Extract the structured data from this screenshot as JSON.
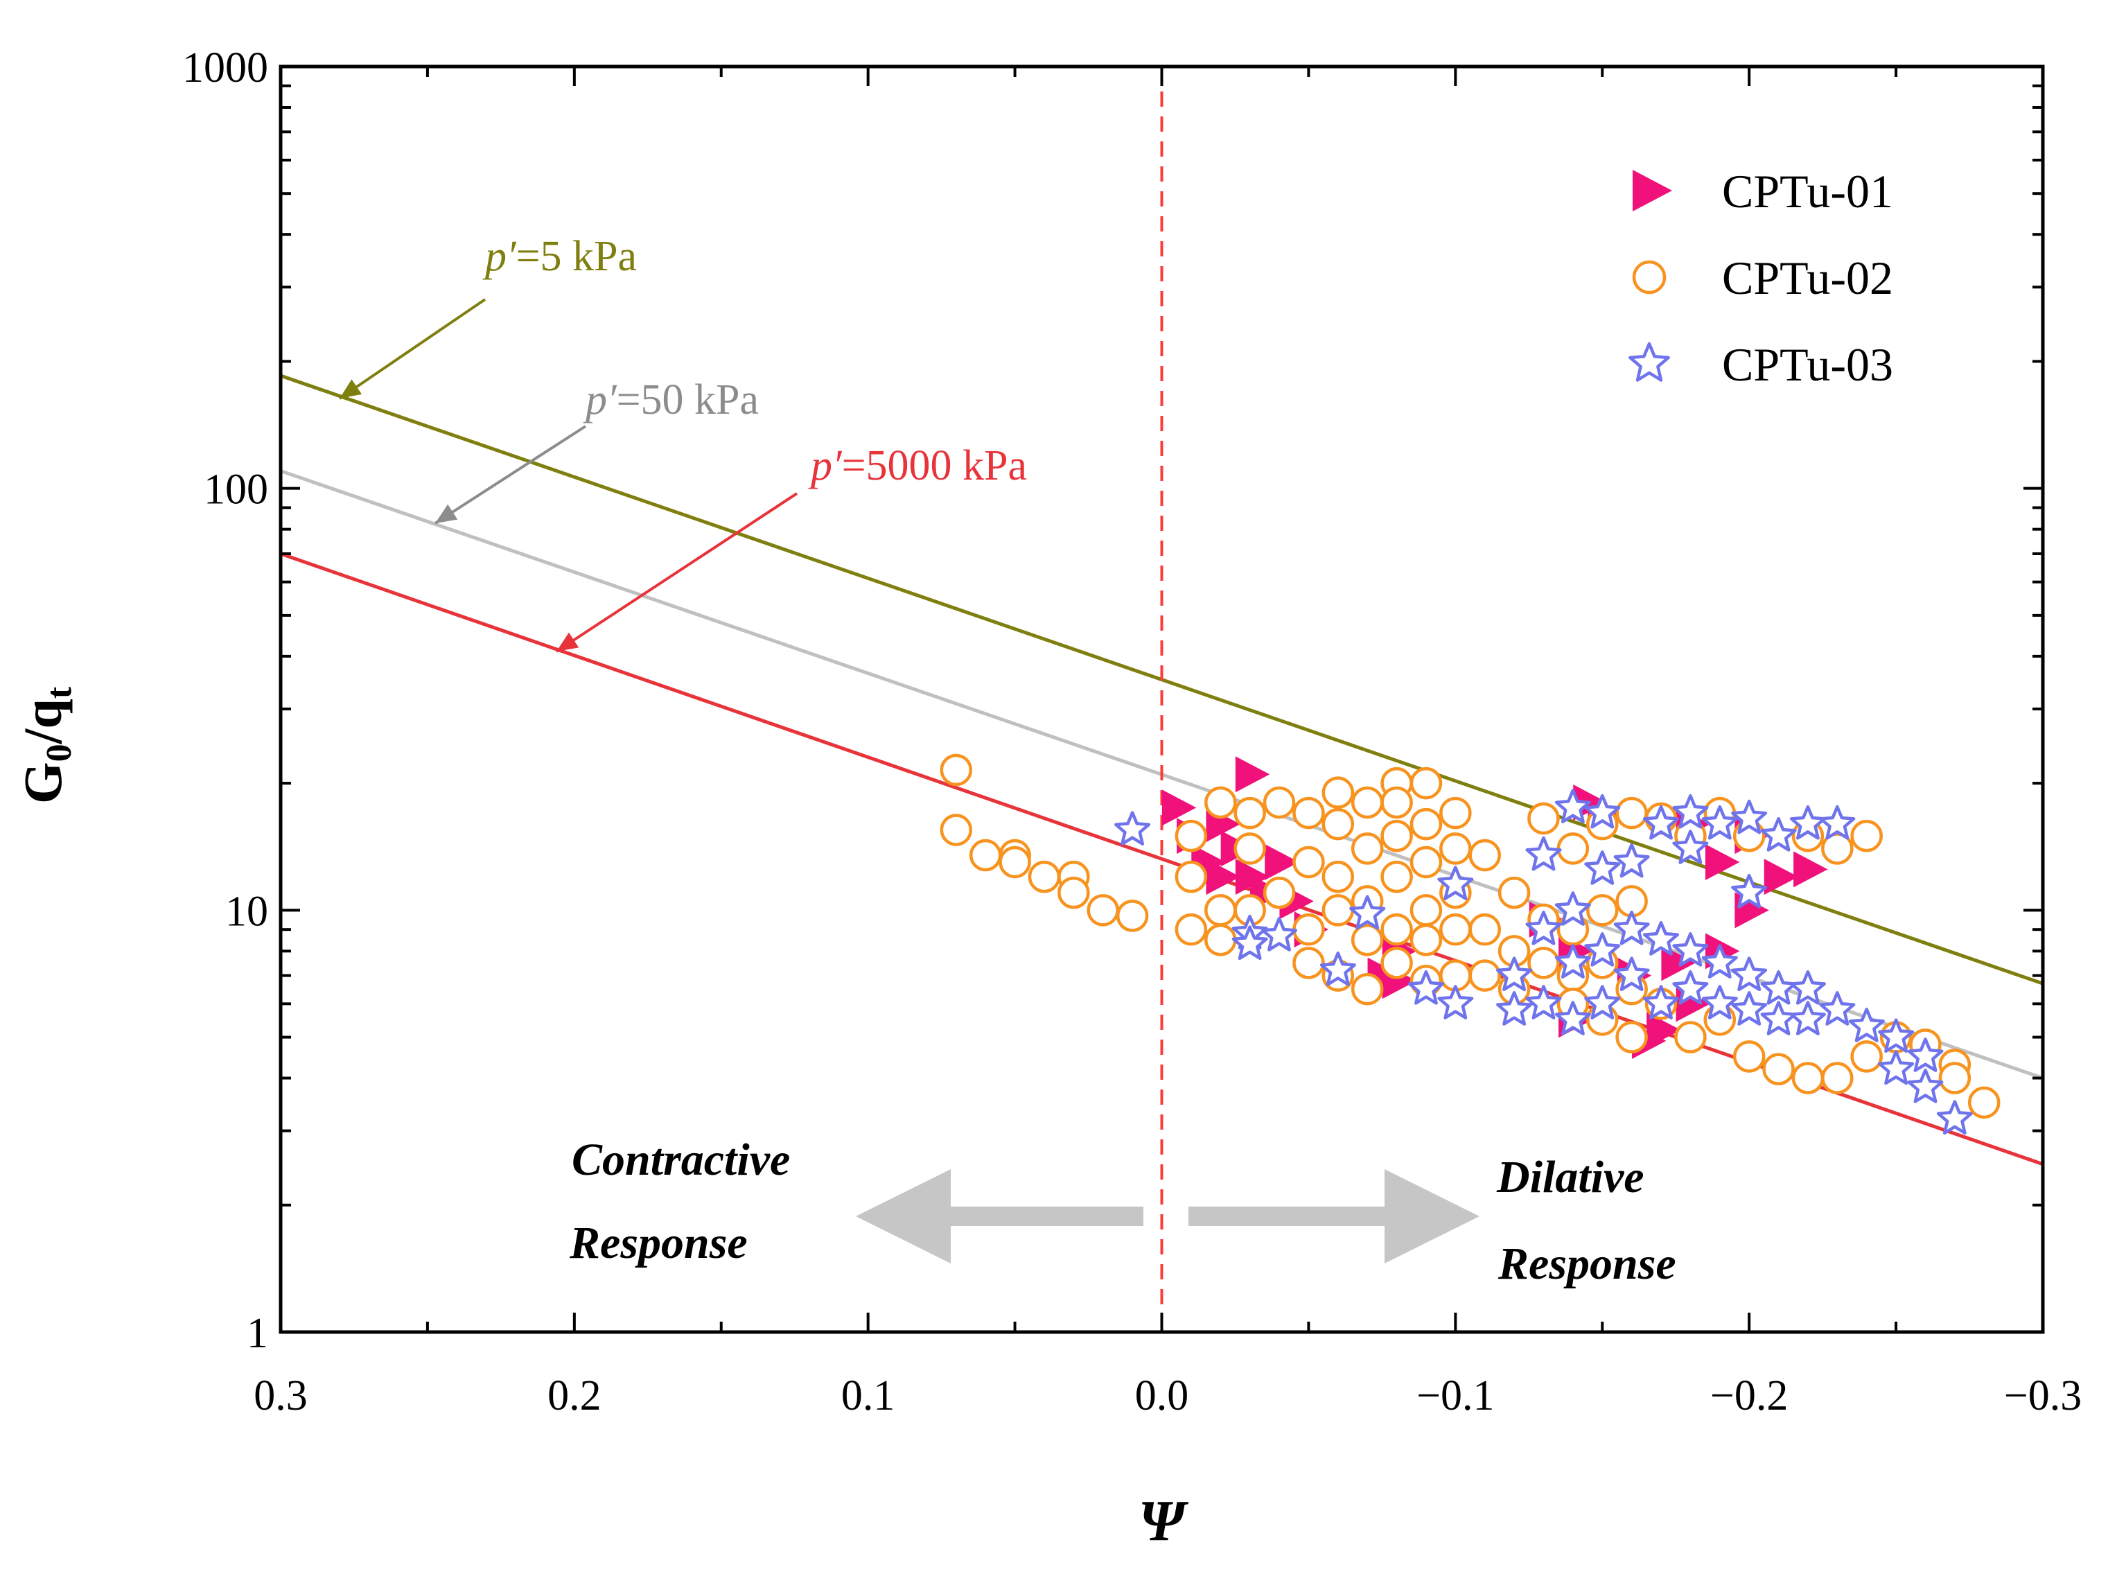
{
  "chart_data": {
    "type": "scatter",
    "title": "",
    "xlabel": "Ψ",
    "ylabel_main": "G",
    "ylabel_sub0": "0",
    "ylabel_mid": "/q",
    "ylabel_subt": "t",
    "xlim": [
      0.3,
      -0.3
    ],
    "ylim": [
      1,
      1000
    ],
    "yscale": "log",
    "x_ticks": [
      0.3,
      0.2,
      0.1,
      0.0,
      -0.1,
      -0.2,
      -0.3
    ],
    "x_tick_labels": [
      "0.3",
      "0.2",
      "0.1",
      "0.0",
      "−0.1",
      "−0.2",
      "−0.3"
    ],
    "y_ticks": [
      1,
      10,
      100,
      1000
    ],
    "y_tick_labels": [
      "1",
      "10",
      "100",
      "1000"
    ],
    "legend_position": "top-right",
    "series": [
      {
        "name": "CPTu-01",
        "marker": "triangle-right",
        "color": "#f0117a",
        "points": [
          [
            -0.005,
            17.5
          ],
          [
            -0.01,
            15
          ],
          [
            -0.015,
            13
          ],
          [
            -0.02,
            16
          ],
          [
            -0.02,
            12
          ],
          [
            -0.025,
            14
          ],
          [
            -0.03,
            21
          ],
          [
            -0.03,
            12
          ],
          [
            -0.035,
            11
          ],
          [
            -0.04,
            13
          ],
          [
            -0.045,
            10.5
          ],
          [
            -0.05,
            9
          ],
          [
            -0.075,
            7
          ],
          [
            -0.08,
            6.8
          ],
          [
            -0.08,
            8
          ],
          [
            -0.13,
            9.5
          ],
          [
            -0.14,
            8
          ],
          [
            -0.145,
            18
          ],
          [
            -0.15,
            17
          ],
          [
            -0.16,
            7
          ],
          [
            -0.165,
            4.9
          ],
          [
            -0.17,
            5.2
          ],
          [
            -0.18,
            16
          ],
          [
            -0.19,
            13
          ],
          [
            -0.19,
            8
          ],
          [
            -0.2,
            15
          ],
          [
            -0.2,
            10
          ],
          [
            -0.21,
            12
          ],
          [
            -0.22,
            12.5
          ],
          [
            -0.18,
            6
          ],
          [
            -0.175,
            7.5
          ],
          [
            -0.14,
            5.5
          ]
        ]
      },
      {
        "name": "CPTu-02",
        "marker": "circle-open",
        "color": "#f7931e",
        "points": [
          [
            0.07,
            21.5
          ],
          [
            0.07,
            15.5
          ],
          [
            0.06,
            13.5
          ],
          [
            0.05,
            13.5
          ],
          [
            0.05,
            13
          ],
          [
            0.04,
            12
          ],
          [
            0.03,
            12
          ],
          [
            0.03,
            11
          ],
          [
            0.02,
            10
          ],
          [
            0.01,
            9.7
          ],
          [
            -0.01,
            15
          ],
          [
            -0.01,
            9
          ],
          [
            -0.01,
            12
          ],
          [
            -0.02,
            18
          ],
          [
            -0.02,
            10
          ],
          [
            -0.02,
            8.5
          ],
          [
            -0.03,
            17
          ],
          [
            -0.03,
            14
          ],
          [
            -0.03,
            10
          ],
          [
            -0.04,
            18
          ],
          [
            -0.04,
            11
          ],
          [
            -0.05,
            17
          ],
          [
            -0.05,
            13
          ],
          [
            -0.05,
            9
          ],
          [
            -0.05,
            7.5
          ],
          [
            -0.06,
            19
          ],
          [
            -0.06,
            16
          ],
          [
            -0.06,
            12
          ],
          [
            -0.06,
            10
          ],
          [
            -0.06,
            7
          ],
          [
            -0.07,
            18
          ],
          [
            -0.07,
            14
          ],
          [
            -0.07,
            10.5
          ],
          [
            -0.07,
            8.5
          ],
          [
            -0.07,
            6.5
          ],
          [
            -0.08,
            20
          ],
          [
            -0.08,
            18
          ],
          [
            -0.08,
            15
          ],
          [
            -0.08,
            12
          ],
          [
            -0.08,
            9
          ],
          [
            -0.08,
            7.5
          ],
          [
            -0.09,
            20
          ],
          [
            -0.09,
            16
          ],
          [
            -0.09,
            13
          ],
          [
            -0.09,
            10
          ],
          [
            -0.09,
            8.5
          ],
          [
            -0.09,
            6.8
          ],
          [
            -0.1,
            17
          ],
          [
            -0.1,
            14
          ],
          [
            -0.1,
            11
          ],
          [
            -0.1,
            9
          ],
          [
            -0.1,
            7
          ],
          [
            -0.11,
            13.5
          ],
          [
            -0.11,
            9
          ],
          [
            -0.11,
            7
          ],
          [
            -0.12,
            11
          ],
          [
            -0.12,
            8
          ],
          [
            -0.12,
            6.5
          ],
          [
            -0.13,
            16.5
          ],
          [
            -0.13,
            9.5
          ],
          [
            -0.13,
            7.5
          ],
          [
            -0.14,
            14
          ],
          [
            -0.14,
            9
          ],
          [
            -0.14,
            7
          ],
          [
            -0.14,
            6
          ],
          [
            -0.15,
            16
          ],
          [
            -0.15,
            10
          ],
          [
            -0.15,
            7.5
          ],
          [
            -0.15,
            5.5
          ],
          [
            -0.16,
            17
          ],
          [
            -0.16,
            10.5
          ],
          [
            -0.16,
            6.5
          ],
          [
            -0.16,
            5
          ],
          [
            -0.17,
            16.5
          ],
          [
            -0.17,
            6
          ],
          [
            -0.18,
            15
          ],
          [
            -0.18,
            5
          ],
          [
            -0.19,
            17
          ],
          [
            -0.19,
            5.5
          ],
          [
            -0.2,
            15
          ],
          [
            -0.2,
            4.5
          ],
          [
            -0.21,
            4.2
          ],
          [
            -0.22,
            15
          ],
          [
            -0.22,
            4.0
          ],
          [
            -0.23,
            14
          ],
          [
            -0.23,
            4.0
          ],
          [
            -0.24,
            15
          ],
          [
            -0.24,
            4.5
          ],
          [
            -0.25,
            5
          ],
          [
            -0.26,
            4.8
          ],
          [
            -0.27,
            4.3
          ],
          [
            -0.27,
            4.0
          ],
          [
            -0.28,
            3.5
          ]
        ]
      },
      {
        "name": "CPTu-03",
        "marker": "star",
        "color": "#6f74ec",
        "points": [
          [
            0.01,
            15.5
          ],
          [
            -0.03,
            8.8
          ],
          [
            -0.03,
            8.3
          ],
          [
            -0.04,
            8.7
          ],
          [
            -0.06,
            7.2
          ],
          [
            -0.07,
            9.8
          ],
          [
            -0.09,
            6.5
          ],
          [
            -0.1,
            6
          ],
          [
            -0.1,
            11.5
          ],
          [
            -0.12,
            7
          ],
          [
            -0.12,
            5.8
          ],
          [
            -0.13,
            13.5
          ],
          [
            -0.13,
            9
          ],
          [
            -0.13,
            6
          ],
          [
            -0.14,
            17.5
          ],
          [
            -0.14,
            10
          ],
          [
            -0.14,
            7.5
          ],
          [
            -0.14,
            5.5
          ],
          [
            -0.15,
            17
          ],
          [
            -0.15,
            12.5
          ],
          [
            -0.15,
            8
          ],
          [
            -0.15,
            6
          ],
          [
            -0.16,
            13
          ],
          [
            -0.16,
            9
          ],
          [
            -0.16,
            7
          ],
          [
            -0.17,
            16
          ],
          [
            -0.17,
            8.5
          ],
          [
            -0.17,
            6
          ],
          [
            -0.18,
            17
          ],
          [
            -0.18,
            14
          ],
          [
            -0.18,
            8
          ],
          [
            -0.18,
            6.5
          ],
          [
            -0.19,
            16
          ],
          [
            -0.19,
            7.5
          ],
          [
            -0.19,
            6
          ],
          [
            -0.2,
            16.5
          ],
          [
            -0.2,
            11
          ],
          [
            -0.2,
            7
          ],
          [
            -0.2,
            5.8
          ],
          [
            -0.21,
            15
          ],
          [
            -0.21,
            6.5
          ],
          [
            -0.21,
            5.5
          ],
          [
            -0.22,
            16
          ],
          [
            -0.22,
            6.5
          ],
          [
            -0.22,
            5.5
          ],
          [
            -0.23,
            16
          ],
          [
            -0.23,
            5.8
          ],
          [
            -0.24,
            5.3
          ],
          [
            -0.25,
            5
          ],
          [
            -0.25,
            4.2
          ],
          [
            -0.26,
            4.5
          ],
          [
            -0.26,
            3.8
          ],
          [
            -0.27,
            3.2
          ]
        ]
      }
    ],
    "reference_lines": [
      {
        "name": "p′=5 kPa",
        "label_italic": "p′",
        "label_rest": "=5 kPa",
        "color": "#7f7f10",
        "start": [
          0.3,
          185
        ],
        "end": [
          -0.3,
          6.7
        ]
      },
      {
        "name": "p′=50 kPa",
        "label_italic": "p′",
        "label_rest": "=50 kPa",
        "color": "#c0c0c0",
        "label_color": "#8c8c8c",
        "start": [
          0.3,
          110
        ],
        "end": [
          -0.3,
          4.0
        ]
      },
      {
        "name": "p′=5000 kPa",
        "label_italic": "p′",
        "label_rest": "=5000 kPa",
        "color": "#e8333a",
        "start": [
          0.3,
          70
        ],
        "end": [
          -0.3,
          2.5
        ]
      }
    ],
    "divider_x": 0.0,
    "annotations": {
      "contractive_line1": "Contractive",
      "contractive_line2": "Response",
      "dilative_line1": "Dilative",
      "dilative_line2": "Response"
    }
  },
  "colors": {
    "axis": "#000000",
    "divider": "#ff3a3a",
    "arrow": "#c6c6c6",
    "cptu01": "#f0117a",
    "cptu02": "#f7931e",
    "cptu03": "#6f74ec"
  }
}
